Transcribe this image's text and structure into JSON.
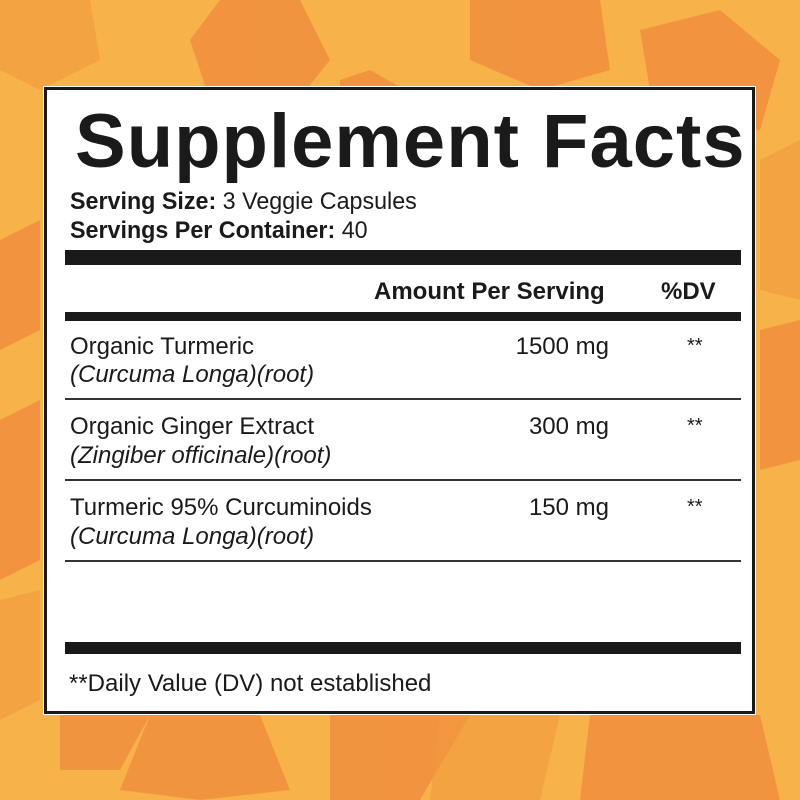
{
  "colors": {
    "background": "#f7b24a",
    "hexagons": "#f08a3c",
    "panel": "#ffffff",
    "ink": "#1a1a1a"
  },
  "title": "Supplement Facts",
  "serving_size": {
    "label": "Serving Size:",
    "value": "3 Veggie Capsules"
  },
  "servings_per_container": {
    "label": "Servings Per Container:",
    "value": "40"
  },
  "table": {
    "headers": {
      "amount": "Amount Per Serving",
      "dv": "%DV"
    },
    "rows": [
      {
        "name": "Organic Turmeric",
        "source": "(Curcuma Longa)(root)",
        "amount": "1500 mg",
        "dv": "**"
      },
      {
        "name": "Organic Ginger Extract",
        "source": "(Zingiber officinale)(root)",
        "amount": "300 mg",
        "dv": "**"
      },
      {
        "name": "Turmeric 95% Curcuminoids",
        "source": "(Curcuma Longa)(root)",
        "amount": "150 mg",
        "dv": "**"
      }
    ]
  },
  "footnote": "**Daily Value (DV) not established"
}
